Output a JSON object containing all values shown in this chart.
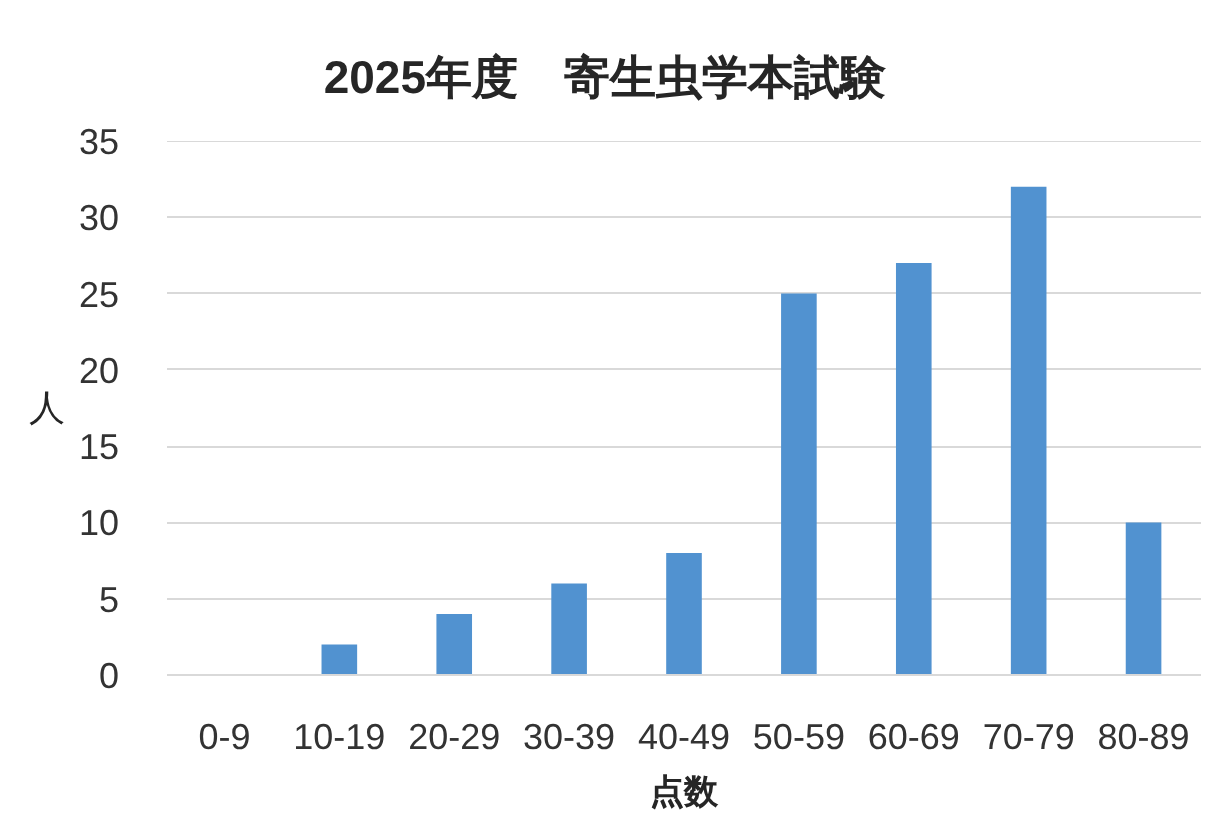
{
  "chart_data": {
    "type": "bar",
    "title": "2025年度　寄生虫学本試験",
    "xlabel": "点数",
    "ylabel": "人",
    "categories": [
      "0-9",
      "10-19",
      "20-29",
      "30-39",
      "40-49",
      "50-59",
      "60-69",
      "70-79",
      "80-89"
    ],
    "values": [
      0,
      2,
      4,
      6,
      8,
      25,
      27,
      32,
      10
    ],
    "color": "#5192d0",
    "ylim": [
      0,
      35
    ],
    "yticks": [
      0,
      5,
      10,
      15,
      20,
      25,
      30,
      35
    ],
    "grid": "y"
  }
}
